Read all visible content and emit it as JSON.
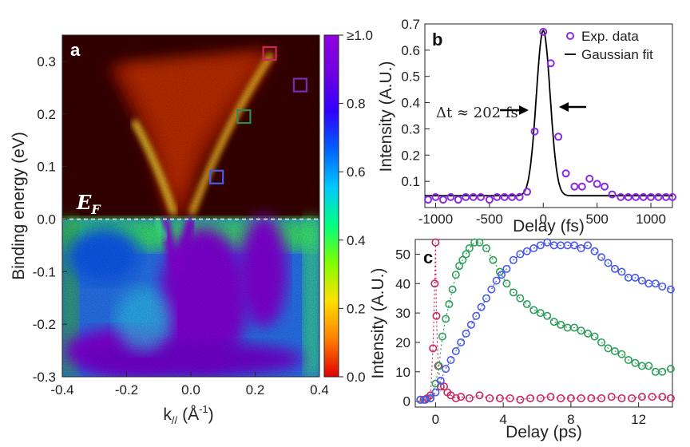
{
  "chart_data": [
    {
      "id": "a",
      "type": "heatmap",
      "panel_label": "a",
      "xlabel": "k",
      "xlabel_sub": "//",
      "xlabel_unit": "(Å",
      "xlabel_unit_sup": "-1",
      "xlabel_unit_close": ")",
      "ylabel": "Binding energy (eV)",
      "xlim": [
        -0.4,
        0.4
      ],
      "ylim": [
        -0.3,
        0.35
      ],
      "xticks": [
        "-0.4",
        "-0.2",
        "0.0",
        "0.2",
        "0.4"
      ],
      "xtick_values": [
        -0.4,
        -0.2,
        0.0,
        0.2,
        0.4
      ],
      "yticks": [
        "-0.3",
        "-0.2",
        "-0.1",
        "0.0",
        "0.1",
        "0.2",
        "0.3"
      ],
      "ytick_values": [
        -0.3,
        -0.2,
        -0.1,
        0.0,
        0.1,
        0.2,
        0.3
      ],
      "fermi_label": "E",
      "fermi_label_sub": "F",
      "fermi_level": 0.0,
      "markers": [
        {
          "k": 0.08,
          "E": 0.08,
          "color": "#4a5ae8"
        },
        {
          "k": 0.165,
          "E": 0.195,
          "color": "#2e8b57"
        },
        {
          "k": 0.245,
          "E": 0.315,
          "color": "#c8285a"
        },
        {
          "k": 0.34,
          "E": 0.255,
          "color": "#7b2ab8"
        }
      ],
      "colorbar": {
        "ticks": [
          "0.0",
          "0.2",
          "0.4",
          "0.6",
          "0.8",
          "≥1.0"
        ],
        "tick_values": [
          0.0,
          0.2,
          0.4,
          0.6,
          0.8,
          1.0
        ],
        "colors": [
          "#e00000",
          "#ff8000",
          "#ffe000",
          "#80ff00",
          "#00ff80",
          "#00c8ff",
          "#0060ff",
          "#3000ff",
          "#7000e0",
          "#9000e0"
        ]
      }
    },
    {
      "id": "b",
      "type": "scatter",
      "panel_label": "b",
      "xlabel": "Delay (fs)",
      "ylabel": "Intensity (A.U.)",
      "xlim": [
        -1100,
        1200
      ],
      "ylim": [
        0,
        0.7
      ],
      "xticks": [
        "-1000",
        "-500",
        "0",
        "500",
        "1000"
      ],
      "xtick_values": [
        -1000,
        -500,
        0,
        500,
        1000
      ],
      "yticks": [
        "0.1",
        "0.2",
        "0.3",
        "0.4",
        "0.5",
        "0.6",
        "0.7"
      ],
      "ytick_values": [
        0.1,
        0.2,
        0.3,
        0.4,
        0.5,
        0.6,
        0.7
      ],
      "legend": [
        "Exp. data",
        "Gaussian fit"
      ],
      "annotation": "Δt ≈ 202 fs",
      "series": [
        {
          "name": "Exp. data",
          "color": "#8a2be2",
          "x": [
            -1070,
            -1000,
            -930,
            -860,
            -790,
            -720,
            -650,
            -580,
            -500,
            -430,
            -360,
            -290,
            -220,
            -150,
            -80,
            0,
            70,
            140,
            210,
            290,
            360,
            430,
            500,
            570,
            640,
            720,
            790,
            860,
            930,
            1000,
            1070,
            1140,
            1200
          ],
          "y": [
            0.03,
            0.04,
            0.03,
            0.04,
            0.03,
            0.04,
            0.04,
            0.04,
            0.03,
            0.04,
            0.04,
            0.04,
            0.04,
            0.06,
            0.29,
            0.67,
            0.55,
            0.27,
            0.13,
            0.08,
            0.08,
            0.11,
            0.09,
            0.08,
            0.05,
            0.04,
            0.04,
            0.04,
            0.04,
            0.04,
            0.04,
            0.04,
            0.04
          ]
        },
        {
          "name": "Gaussian fit",
          "color": "#000000",
          "fit": {
            "amplitude": 0.63,
            "center": 0,
            "fwhm": 202,
            "offset": 0.045
          }
        }
      ]
    },
    {
      "id": "c",
      "type": "scatter",
      "panel_label": "c",
      "xlabel": "Delay (ps)",
      "ylabel": "Intensity (A.U.)",
      "xlim": [
        -1.2,
        14
      ],
      "ylim": [
        -2,
        55
      ],
      "xticks": [
        "0",
        "4",
        "8",
        "12"
      ],
      "xtick_values": [
        0,
        4,
        8,
        12
      ],
      "yticks": [
        "0",
        "10",
        "20",
        "30",
        "40",
        "50"
      ],
      "ytick_values": [
        0,
        10,
        20,
        30,
        40,
        50
      ],
      "series": [
        {
          "color": "#c8285a",
          "x": [
            -0.9,
            -0.7,
            -0.5,
            -0.3,
            -0.15,
            -0.05,
            0.0,
            0.05,
            0.15,
            0.3,
            0.5,
            0.7,
            0.9,
            1.2,
            1.5,
            2.0,
            2.6,
            3.2,
            3.8,
            4.4,
            5.0,
            5.6,
            6.2,
            6.8,
            7.4,
            8.0,
            8.6,
            9.2,
            9.8,
            10.4,
            11.0,
            11.6,
            12.2,
            12.8,
            13.4,
            13.9
          ],
          "y": [
            0.5,
            0.5,
            1,
            2,
            18,
            40,
            54,
            29,
            12,
            5,
            5,
            3,
            2,
            1,
            1.5,
            1,
            2,
            1,
            1,
            1,
            0.5,
            1,
            1,
            1.5,
            1,
            1,
            1,
            1,
            1,
            1.5,
            1,
            1,
            1.5,
            1.5,
            1.5,
            1
          ]
        },
        {
          "color": "#2e9e5a",
          "x": [
            -0.9,
            -0.6,
            -0.3,
            0.0,
            0.2,
            0.4,
            0.6,
            0.8,
            1.0,
            1.2,
            1.4,
            1.6,
            1.8,
            2.0,
            2.3,
            2.6,
            3.0,
            3.4,
            3.8,
            4.2,
            4.6,
            5.0,
            5.4,
            5.8,
            6.2,
            6.6,
            7.0,
            7.4,
            7.8,
            8.2,
            8.6,
            9.0,
            9.4,
            9.8,
            10.2,
            10.6,
            11.0,
            11.4,
            11.8,
            12.2,
            12.6,
            13.0,
            13.4,
            13.9
          ],
          "y": [
            0.5,
            0.5,
            1,
            6,
            12,
            22,
            28,
            33,
            38,
            43,
            46,
            48,
            50,
            52,
            54,
            54,
            52,
            48,
            44,
            40,
            37,
            35,
            33,
            31,
            30,
            29,
            27,
            26,
            25,
            25,
            24,
            23,
            22,
            20,
            18,
            17,
            16,
            14,
            13,
            12,
            12,
            10,
            10,
            11
          ]
        },
        {
          "color": "#4a5ae8",
          "x": [
            -0.9,
            -0.6,
            -0.3,
            0.0,
            0.3,
            0.6,
            0.9,
            1.2,
            1.5,
            1.8,
            2.1,
            2.4,
            2.7,
            3.0,
            3.3,
            3.6,
            3.9,
            4.2,
            4.6,
            5.0,
            5.4,
            5.8,
            6.2,
            6.6,
            7.0,
            7.4,
            7.8,
            8.2,
            8.6,
            9.0,
            9.4,
            9.8,
            10.2,
            10.6,
            11.0,
            11.4,
            11.8,
            12.2,
            12.6,
            13.0,
            13.4,
            13.9
          ],
          "y": [
            0.5,
            0.5,
            1,
            3,
            7,
            11,
            14,
            17,
            20,
            23,
            26,
            29,
            32,
            35,
            38,
            41,
            43,
            45,
            48,
            50,
            51,
            52,
            53,
            54,
            53,
            53,
            53,
            53,
            52,
            53,
            51,
            49,
            47,
            45,
            44,
            42,
            42,
            41,
            40,
            40,
            39,
            38
          ]
        }
      ]
    }
  ]
}
